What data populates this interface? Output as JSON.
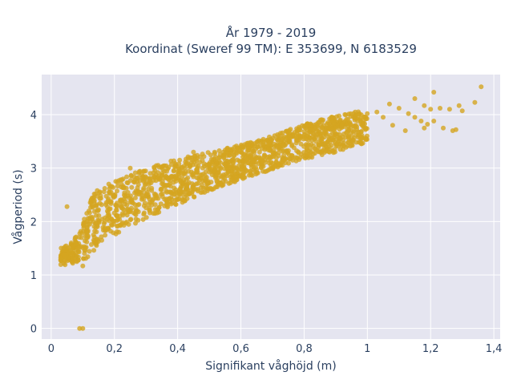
{
  "chart_data": {
    "type": "scatter",
    "title_line1": "År 1979 - 2019",
    "title_line2": "Koordinat (Sweref 99 TM): E 353699, N 6183529",
    "xlabel": "Signifikant våghöjd (m)",
    "ylabel": "Vågperiod (s)",
    "xlim": [
      -0.03,
      1.42
    ],
    "ylim": [
      -0.2,
      4.75
    ],
    "x_ticks": [
      0,
      0.2,
      0.4,
      0.6,
      0.8,
      1.0,
      1.2,
      1.4
    ],
    "x_tick_labels": [
      "0",
      "0,2",
      "0,4",
      "0,6",
      "0,8",
      "1",
      "1,2",
      "1,4"
    ],
    "y_ticks": [
      0,
      1,
      2,
      3,
      4
    ],
    "y_tick_labels": [
      "0",
      "1",
      "2",
      "3",
      "4"
    ],
    "grid": true,
    "marker_color": "#d4a520",
    "plot_bg": "#e5e5f0",
    "band_curve": {
      "x": [
        0.03,
        0.06,
        0.09,
        0.12,
        0.15,
        0.2,
        0.25,
        0.3,
        0.35,
        0.4,
        0.45,
        0.5,
        0.55,
        0.6,
        0.65,
        0.7,
        0.75,
        0.8,
        0.85,
        0.9,
        0.95,
        1.0
      ],
      "lo": [
        1.18,
        1.2,
        1.25,
        1.3,
        1.6,
        1.75,
        1.9,
        2.05,
        2.2,
        2.32,
        2.45,
        2.58,
        2.68,
        2.78,
        2.88,
        2.98,
        3.08,
        3.16,
        3.24,
        3.3,
        3.4,
        3.48
      ],
      "hi": [
        1.55,
        1.58,
        1.8,
        2.4,
        2.62,
        2.75,
        2.88,
        3.0,
        3.08,
        3.18,
        3.25,
        3.3,
        3.38,
        3.45,
        3.52,
        3.6,
        3.72,
        3.82,
        3.9,
        3.98,
        4.04,
        4.08
      ]
    },
    "sample_points": [
      {
        "x": 0.05,
        "y": 2.28
      },
      {
        "x": 0.09,
        "y": 0.0
      },
      {
        "x": 0.1,
        "y": 0.0
      },
      {
        "x": 0.1,
        "y": 1.17
      },
      {
        "x": 0.13,
        "y": 2.05
      },
      {
        "x": 0.16,
        "y": 1.65
      },
      {
        "x": 0.25,
        "y": 3.0
      },
      {
        "x": 0.45,
        "y": 3.3
      },
      {
        "x": 1.03,
        "y": 4.05
      },
      {
        "x": 1.05,
        "y": 3.95
      },
      {
        "x": 1.07,
        "y": 4.2
      },
      {
        "x": 1.08,
        "y": 3.8
      },
      {
        "x": 1.1,
        "y": 4.12
      },
      {
        "x": 1.12,
        "y": 3.7
      },
      {
        "x": 1.13,
        "y": 4.02
      },
      {
        "x": 1.15,
        "y": 3.95
      },
      {
        "x": 1.15,
        "y": 4.3
      },
      {
        "x": 1.17,
        "y": 3.88
      },
      {
        "x": 1.18,
        "y": 3.75
      },
      {
        "x": 1.18,
        "y": 4.17
      },
      {
        "x": 1.19,
        "y": 3.82
      },
      {
        "x": 1.2,
        "y": 4.1
      },
      {
        "x": 1.21,
        "y": 4.42
      },
      {
        "x": 1.21,
        "y": 3.88
      },
      {
        "x": 1.23,
        "y": 4.12
      },
      {
        "x": 1.24,
        "y": 3.75
      },
      {
        "x": 1.26,
        "y": 4.1
      },
      {
        "x": 1.27,
        "y": 3.7
      },
      {
        "x": 1.28,
        "y": 3.72
      },
      {
        "x": 1.29,
        "y": 4.17
      },
      {
        "x": 1.3,
        "y": 4.07
      },
      {
        "x": 1.34,
        "y": 4.23
      },
      {
        "x": 1.36,
        "y": 4.52
      }
    ]
  }
}
